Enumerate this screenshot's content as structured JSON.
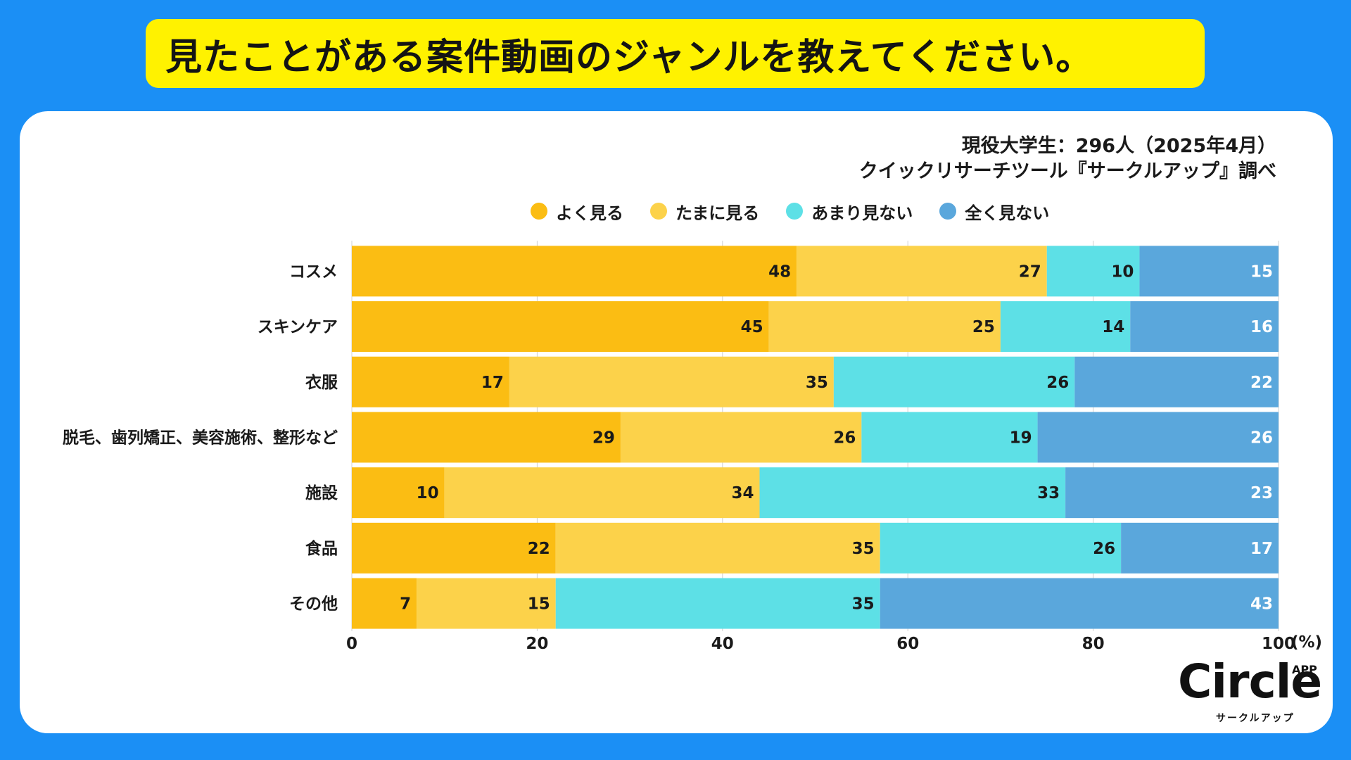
{
  "title": "見たことがある案件動画のジャンルを教えてください。",
  "source": {
    "line1": "現役大学生：296人（2025年4月）",
    "line2": "クイックリサーチツール『サークルアップ』調べ"
  },
  "logo": {
    "main": "Circle",
    "app": "APP",
    "sub": "サークルアップ"
  },
  "colors": {
    "background": "#1b8ff5",
    "banner": "#fff200"
  },
  "chart_data": {
    "type": "bar",
    "orientation": "horizontal",
    "stacked": true,
    "title": "見たことがある案件動画のジャンルを教えてください。",
    "categories": [
      "コスメ",
      "スキンケア",
      "衣服",
      "脱毛、歯列矯正、美容施術、整形など",
      "施設",
      "食品",
      "その他"
    ],
    "series": [
      {
        "name": "よく見る",
        "color": "#fbbd13",
        "label_color": "#1a1a1a",
        "values": [
          48,
          45,
          17,
          29,
          10,
          22,
          7
        ]
      },
      {
        "name": "たまに見る",
        "color": "#fcd24a",
        "label_color": "#1a1a1a",
        "values": [
          27,
          25,
          35,
          26,
          34,
          35,
          15
        ]
      },
      {
        "name": "あまり見ない",
        "color": "#5de0e6",
        "label_color": "#1a1a1a",
        "values": [
          10,
          14,
          26,
          19,
          33,
          26,
          35
        ]
      },
      {
        "name": "全く見ない",
        "color": "#5aa7dc",
        "label_color": "#ffffff",
        "values": [
          15,
          16,
          22,
          26,
          23,
          17,
          43
        ]
      }
    ],
    "xlim": [
      0,
      100
    ],
    "xticks": [
      0,
      20,
      40,
      60,
      80,
      100
    ],
    "xunit": "(%)",
    "legend_position": "top-center",
    "grid": true
  }
}
